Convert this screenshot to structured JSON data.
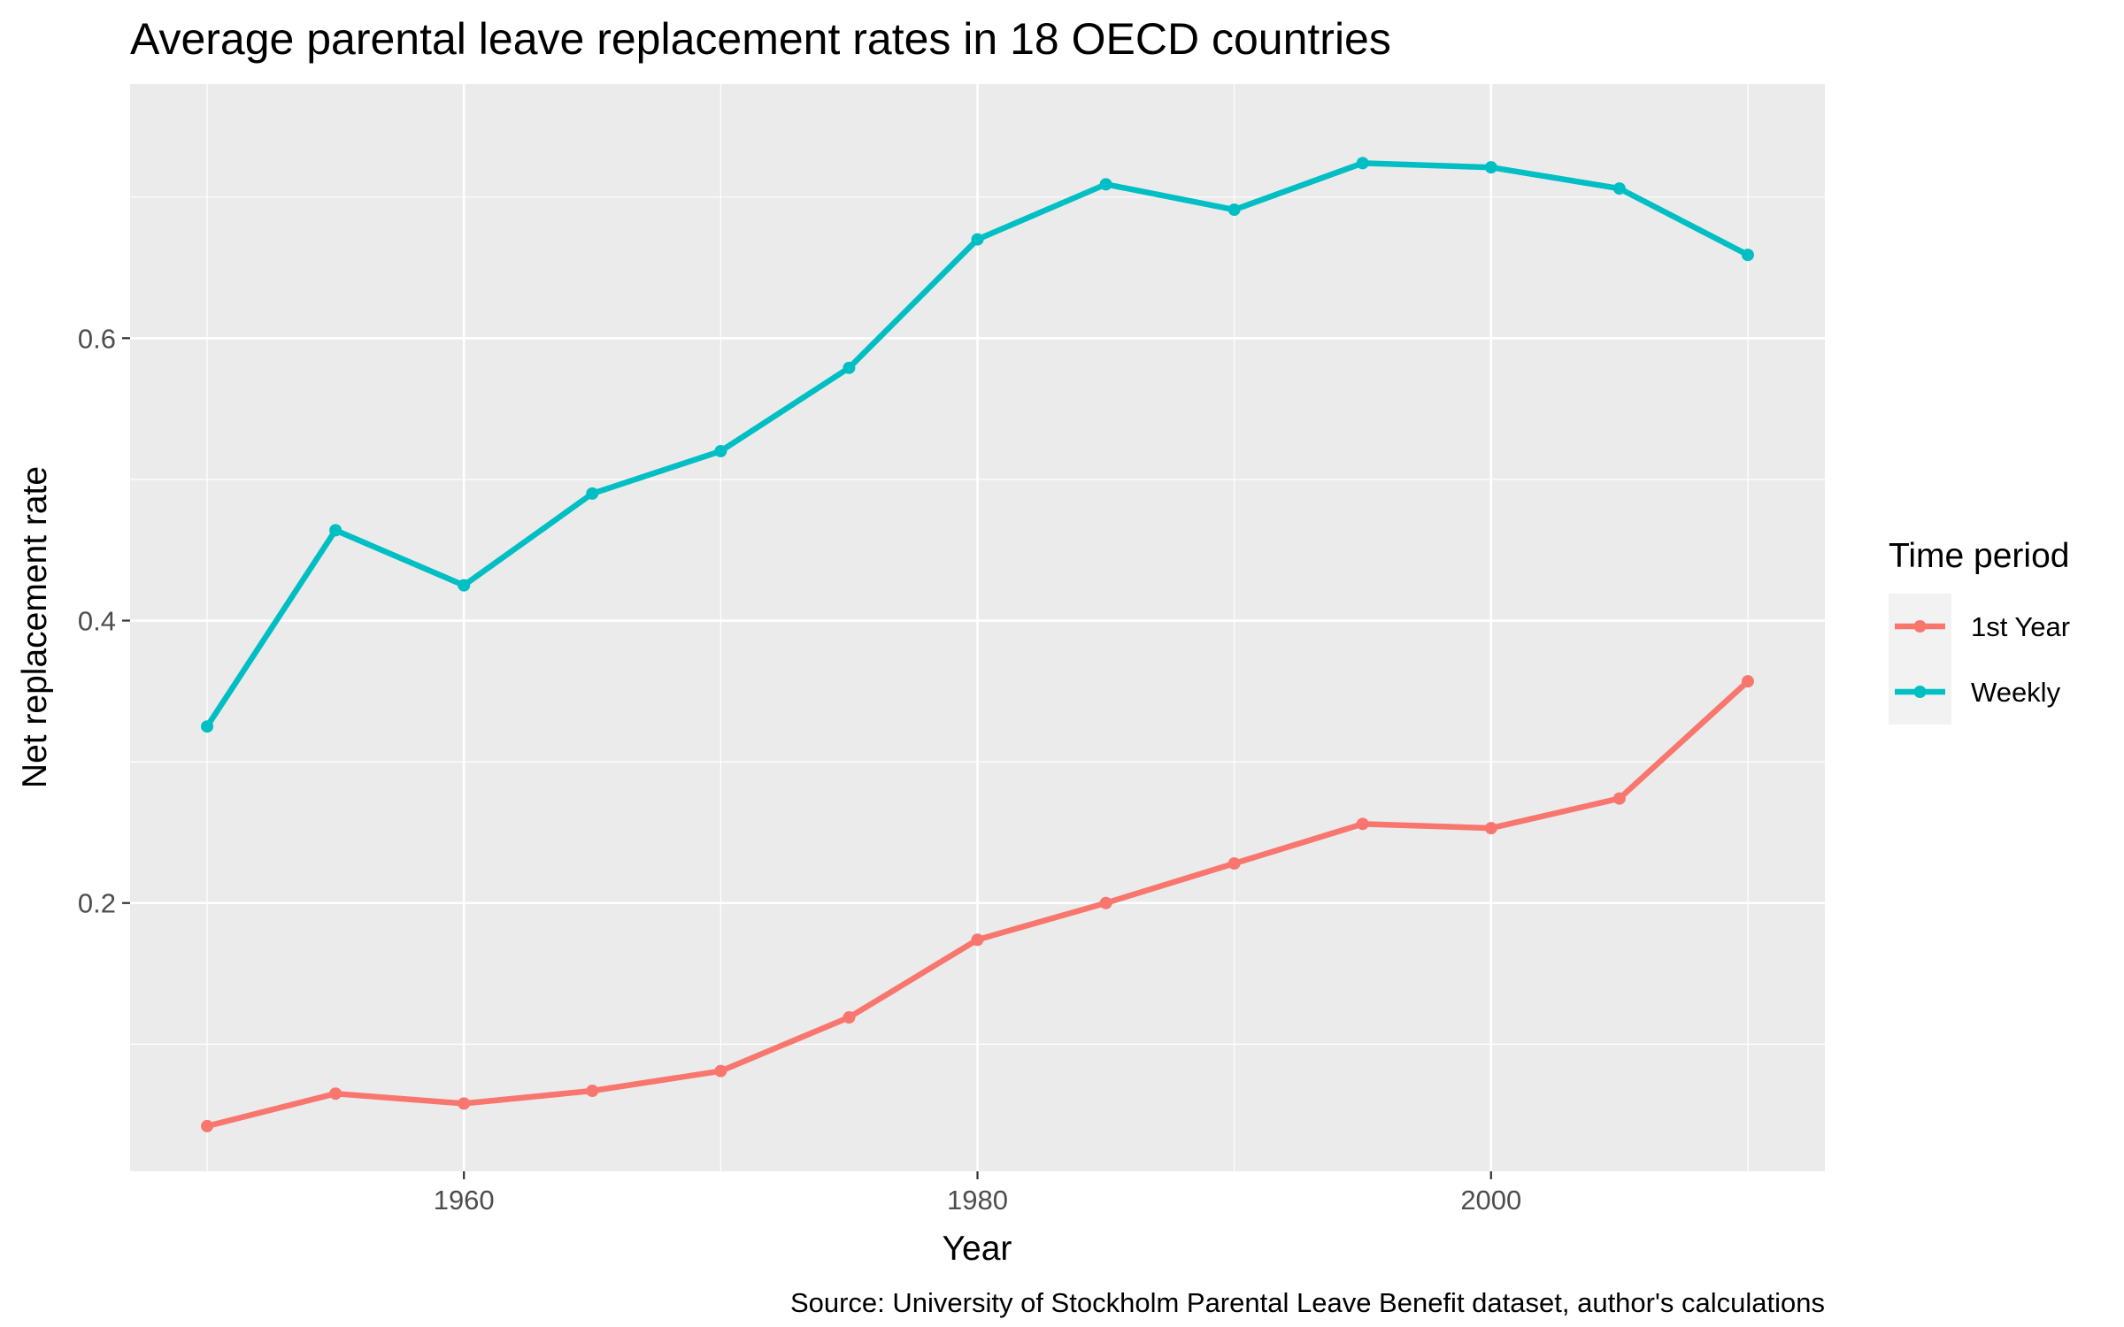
{
  "chart_data": {
    "type": "line",
    "title": "Average parental leave replacement rates in 18 OECD countries",
    "xlabel": "Year",
    "ylabel": "Net replacement rate",
    "caption": "Source: University of Stockholm Parental Leave Benefit dataset, author's calculations",
    "xlim": [
      1947,
      2013
    ],
    "ylim": [
      0.01,
      0.78
    ],
    "x_ticks": [
      1960,
      1980,
      2000
    ],
    "x_tick_labels": [
      "1960",
      "1980",
      "2000"
    ],
    "y_ticks": [
      0.2,
      0.4,
      0.6
    ],
    "y_tick_labels": [
      "0.2",
      "0.4",
      "0.6"
    ],
    "grid": true,
    "legend": {
      "title": "Time period",
      "position": "right"
    },
    "series": [
      {
        "name": "1st Year",
        "color": "#F8766D",
        "x": [
          1950,
          1955,
          1960,
          1965,
          1970,
          1975,
          1980,
          1985,
          1990,
          1995,
          2000,
          2005,
          2010
        ],
        "y": [
          0.042,
          0.065,
          0.058,
          0.067,
          0.081,
          0.119,
          0.174,
          0.2,
          0.228,
          0.256,
          0.253,
          0.274,
          0.357
        ]
      },
      {
        "name": "Weekly",
        "color": "#00BFC4",
        "x": [
          1950,
          1955,
          1960,
          1965,
          1970,
          1975,
          1980,
          1985,
          1990,
          1995,
          2000,
          2005,
          2010
        ],
        "y": [
          0.325,
          0.464,
          0.425,
          0.49,
          0.52,
          0.579,
          0.67,
          0.709,
          0.691,
          0.724,
          0.721,
          0.706,
          0.659
        ]
      }
    ]
  }
}
